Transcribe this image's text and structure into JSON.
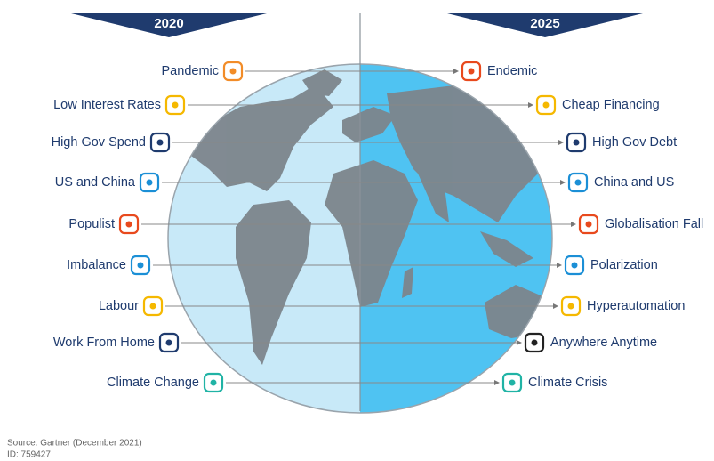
{
  "header": {
    "left_year": "2020",
    "right_year": "2025"
  },
  "left_items": [
    "Pandemic",
    "Low Interest Rates",
    "High Gov Spend",
    "US and China",
    "Populist",
    "Imbalance",
    "Labour",
    "Work From Home",
    "Climate Change"
  ],
  "right_items": [
    "Endemic",
    "Cheap Financing",
    "High Gov Debt",
    "China and US",
    "Globalisation Fall",
    "Polarization",
    "Hyperautomation",
    "Anywhere Anytime",
    "Climate Crisis"
  ],
  "footer": {
    "source": "Source: Gartner (December 2021)",
    "id": "ID: 759427"
  }
}
